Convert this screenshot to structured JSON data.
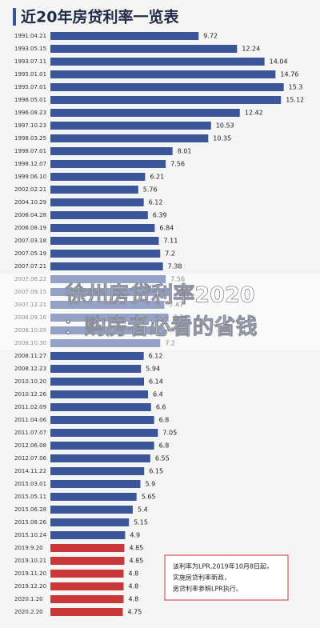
{
  "chart_data": {
    "type": "bar",
    "orientation": "horizontal",
    "title": "近20年房贷利率一览表",
    "categories": [
      "1991.04.21",
      "1993.05.15",
      "1993.07.11",
      "1995.01.01",
      "1995.07.01",
      "1996.05.01",
      "1996.08.23",
      "1997.10.23",
      "1998.03.25",
      "1998.07.01",
      "1998.12.07",
      "1999.06.10",
      "2002.02.21",
      "2004.10.29",
      "2006.04.28",
      "2006.08.19",
      "2007.03.18",
      "2007.05.19",
      "2007.07.21",
      "2007.08.22",
      "2007.09.15",
      "2007.12.21",
      "2008.09.16",
      "2008.10.09",
      "2008.10.30",
      "2008.11.27",
      "2008.12.23",
      "2010.10.20",
      "2010.12.26",
      "2011.02.09",
      "2011.04.06",
      "2011.07.07",
      "2012.06.08",
      "2012.07.06",
      "2014.11.22",
      "2015.03.01",
      "2015.05.11",
      "2015.06.28",
      "2015.08.26",
      "2015.10.24",
      "2019.9.20",
      "2019.10.21",
      "2019.11.20",
      "2019.12.20",
      "2020.1.20",
      "2020.2.20"
    ],
    "values": [
      9.72,
      12.24,
      14.04,
      14.76,
      15.3,
      15.12,
      12.42,
      10.53,
      10.35,
      8.01,
      7.56,
      6.21,
      5.76,
      6.12,
      6.39,
      6.84,
      7.11,
      7.2,
      7.38,
      7.56,
      7.83,
      7.47,
      7.74,
      7.47,
      7.2,
      6.12,
      5.94,
      6.14,
      6.4,
      6.6,
      6.8,
      7.05,
      6.8,
      6.55,
      6.15,
      5.9,
      5.65,
      5.4,
      5.15,
      4.9,
      4.85,
      4.85,
      4.8,
      4.8,
      4.8,
      4.75
    ],
    "colors": [
      "#3b5698",
      "#3b5698",
      "#3b5698",
      "#3b5698",
      "#3b5698",
      "#3b5698",
      "#3b5698",
      "#3b5698",
      "#3b5698",
      "#3b5698",
      "#3b5698",
      "#3b5698",
      "#3b5698",
      "#3b5698",
      "#3b5698",
      "#3b5698",
      "#3b5698",
      "#3b5698",
      "#3b5698",
      "#3b5698",
      "#3b5698",
      "#3b5698",
      "#3b5698",
      "#3b5698",
      "#3b5698",
      "#3b5698",
      "#3b5698",
      "#3b5698",
      "#3b5698",
      "#3b5698",
      "#3b5698",
      "#3b5698",
      "#3b5698",
      "#3b5698",
      "#3b5698",
      "#3b5698",
      "#3b5698",
      "#3b5698",
      "#3b5698",
      "#3b5698",
      "#c9373a",
      "#c9373a",
      "#c9373a",
      "#c9373a",
      "#c9373a",
      "#c9373a"
    ],
    "xlim": [
      0,
      16
    ],
    "annotation": [
      "该利率为LPR,2019年10月8日起，",
      "实施房贷利率新政，",
      "房贷利率参照LPR执行。"
    ]
  },
  "overlay": [
    "徐州房贷利率2020",
    "：购房者必看的省钱"
  ]
}
